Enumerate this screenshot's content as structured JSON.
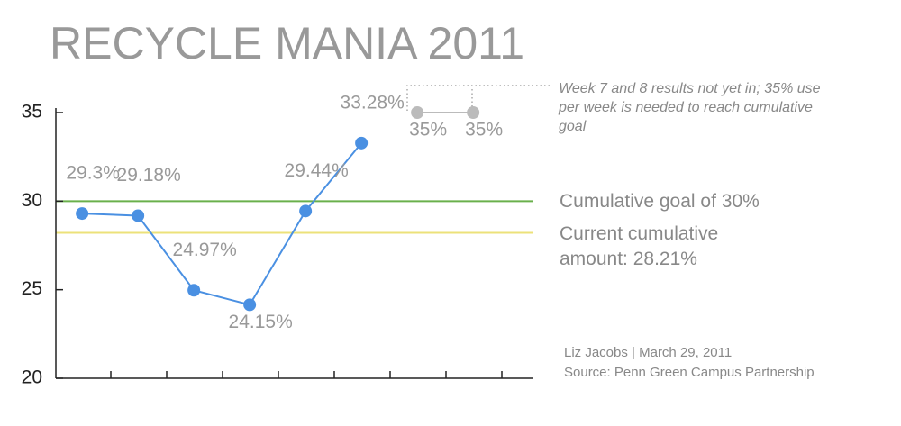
{
  "chart_data": {
    "type": "line",
    "title": "RECYCLE MANIA 2011",
    "categories": [
      null,
      null,
      null,
      null,
      null,
      null,
      null,
      null
    ],
    "series": [
      {
        "color": "#4a90e2",
        "values": [
          29.3,
          29.18,
          24.97,
          24.15,
          29.44,
          33.28,
          null,
          null
        ],
        "value_labels": [
          "29.3%",
          "29.18%",
          "24.97%",
          "24.15%",
          "29.44%",
          "33.28%",
          null,
          null
        ]
      },
      {
        "color": "#bbbbbb",
        "values": [
          null,
          null,
          null,
          null,
          null,
          null,
          35,
          35
        ],
        "value_labels": [
          null,
          null,
          null,
          null,
          null,
          null,
          "35%",
          "35%"
        ]
      }
    ],
    "ylim": [
      20,
      35
    ],
    "yticks": [
      20,
      25,
      30,
      35
    ],
    "reference_lines": [
      {
        "value": 30,
        "label": "Cumulative goal of 30%",
        "color": "#6ab04c"
      },
      {
        "value": 28.21,
        "label": "Current cumulative amount: 28.21%",
        "color": "#ece27a"
      }
    ],
    "annotation": "Week 7 and 8 results not yet in; 35% use per week is needed to reach cumulative goal",
    "credit": "Liz Jacobs | March 29, 2011",
    "source": "Source: Penn Green Campus Partnership"
  }
}
